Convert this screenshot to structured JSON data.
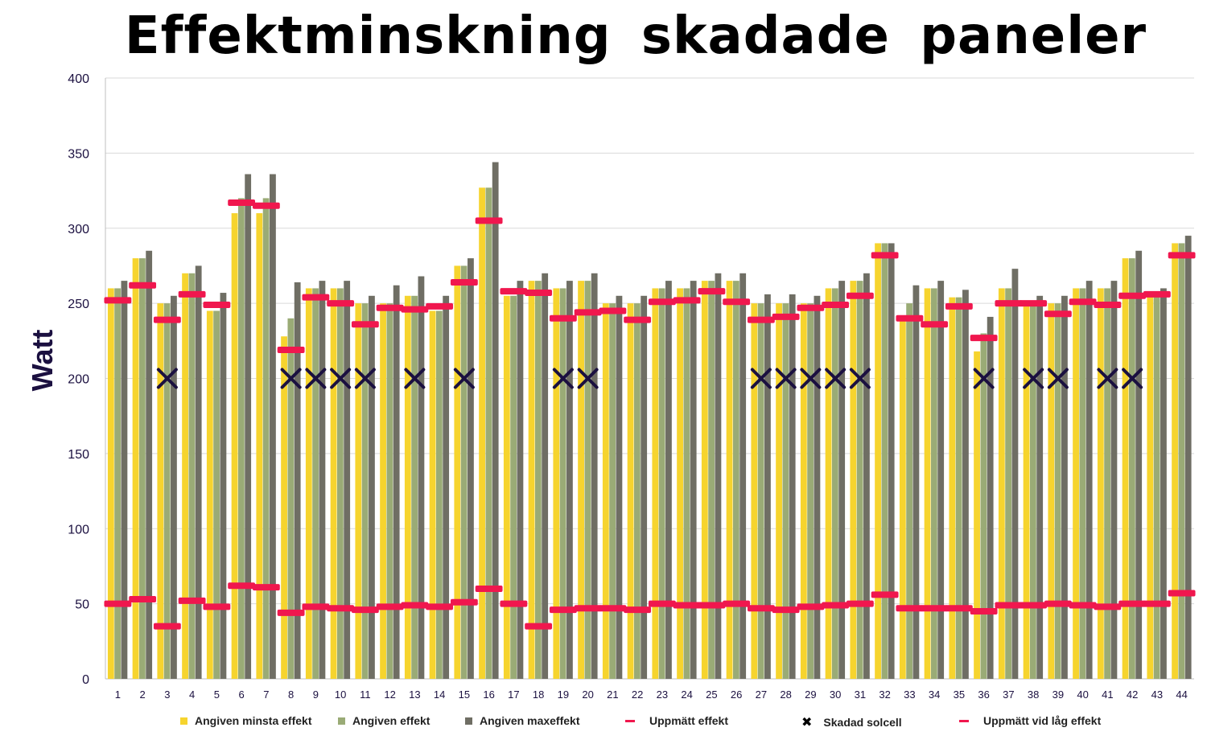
{
  "chart_data": {
    "type": "bar",
    "title": "Effektminskning skadade paneler",
    "ylabel": "Watt",
    "xlabel": "",
    "ylim": [
      0,
      400
    ],
    "yticks": [
      0,
      50,
      100,
      150,
      200,
      250,
      300,
      350,
      400
    ],
    "grid": true,
    "legend_position": "bottom",
    "categories": [
      "1",
      "2",
      "3",
      "4",
      "5",
      "6",
      "7",
      "8",
      "9",
      "10",
      "11",
      "12",
      "13",
      "14",
      "15",
      "16",
      "17",
      "18",
      "19",
      "20",
      "21",
      "22",
      "23",
      "24",
      "25",
      "26",
      "27",
      "28",
      "29",
      "30",
      "31",
      "32",
      "33",
      "34",
      "35",
      "36",
      "37",
      "38",
      "39",
      "40",
      "41",
      "42",
      "43",
      "44"
    ],
    "series": [
      {
        "name": "Angiven minsta effekt",
        "color": "#f6d42e",
        "kind": "bar",
        "values": [
          260,
          280,
          250,
          270,
          245,
          310,
          310,
          228,
          260,
          260,
          250,
          250,
          255,
          245,
          275,
          327,
          255,
          265,
          260,
          265,
          250,
          250,
          260,
          260,
          265,
          265,
          250,
          250,
          250,
          260,
          265,
          290,
          240,
          260,
          254,
          218,
          260,
          250,
          250,
          260,
          260,
          280,
          255,
          290
        ]
      },
      {
        "name": "Angiven effekt",
        "color": "#9aab76",
        "kind": "bar",
        "values": [
          260,
          280,
          250,
          270,
          245,
          320,
          320,
          240,
          260,
          260,
          250,
          250,
          255,
          245,
          275,
          327,
          255,
          265,
          260,
          265,
          250,
          250,
          260,
          260,
          265,
          265,
          250,
          250,
          250,
          260,
          265,
          290,
          250,
          260,
          254,
          230,
          260,
          250,
          250,
          260,
          260,
          280,
          255,
          290
        ]
      },
      {
        "name": "Angiven maxeffekt",
        "color": "#6f6e64",
        "kind": "bar",
        "values": [
          265,
          285,
          255,
          275,
          257,
          336,
          336,
          264,
          265,
          265,
          255,
          262,
          268,
          255,
          280,
          344,
          265,
          270,
          265,
          270,
          255,
          255,
          265,
          265,
          270,
          270,
          256,
          256,
          255,
          265,
          270,
          290,
          262,
          265,
          259,
          241,
          273,
          255,
          255,
          265,
          265,
          285,
          260,
          295
        ]
      },
      {
        "name": "Uppmätt effekt",
        "color": "#f0174e",
        "kind": "marker",
        "values": [
          252,
          262,
          239,
          256,
          249,
          317,
          315,
          219,
          254,
          250,
          236,
          247,
          246,
          248,
          264,
          305,
          258,
          257,
          240,
          244,
          245,
          239,
          251,
          252,
          258,
          251,
          239,
          241,
          247,
          249,
          255,
          282,
          240,
          236,
          248,
          227,
          250,
          250,
          243,
          251,
          249,
          255,
          256,
          282
        ]
      },
      {
        "name": "Skadad solcell",
        "color": "#1b1040",
        "kind": "x",
        "damaged": [
          3,
          8,
          9,
          10,
          11,
          13,
          15,
          19,
          20,
          27,
          28,
          29,
          30,
          31,
          36,
          38,
          39,
          41,
          42
        ]
      },
      {
        "name": "Uppmätt vid låg effekt",
        "color": "#f0174e",
        "kind": "marker",
        "values": [
          50,
          53,
          35,
          52,
          48,
          62,
          61,
          44,
          48,
          47,
          46,
          48,
          49,
          48,
          51,
          60,
          50,
          35,
          46,
          47,
          47,
          46,
          50,
          49,
          49,
          50,
          47,
          46,
          48,
          49,
          50,
          56,
          47,
          47,
          47,
          45,
          49,
          49,
          50,
          49,
          48,
          50,
          50,
          57
        ]
      }
    ],
    "x_marker_value": 200
  }
}
